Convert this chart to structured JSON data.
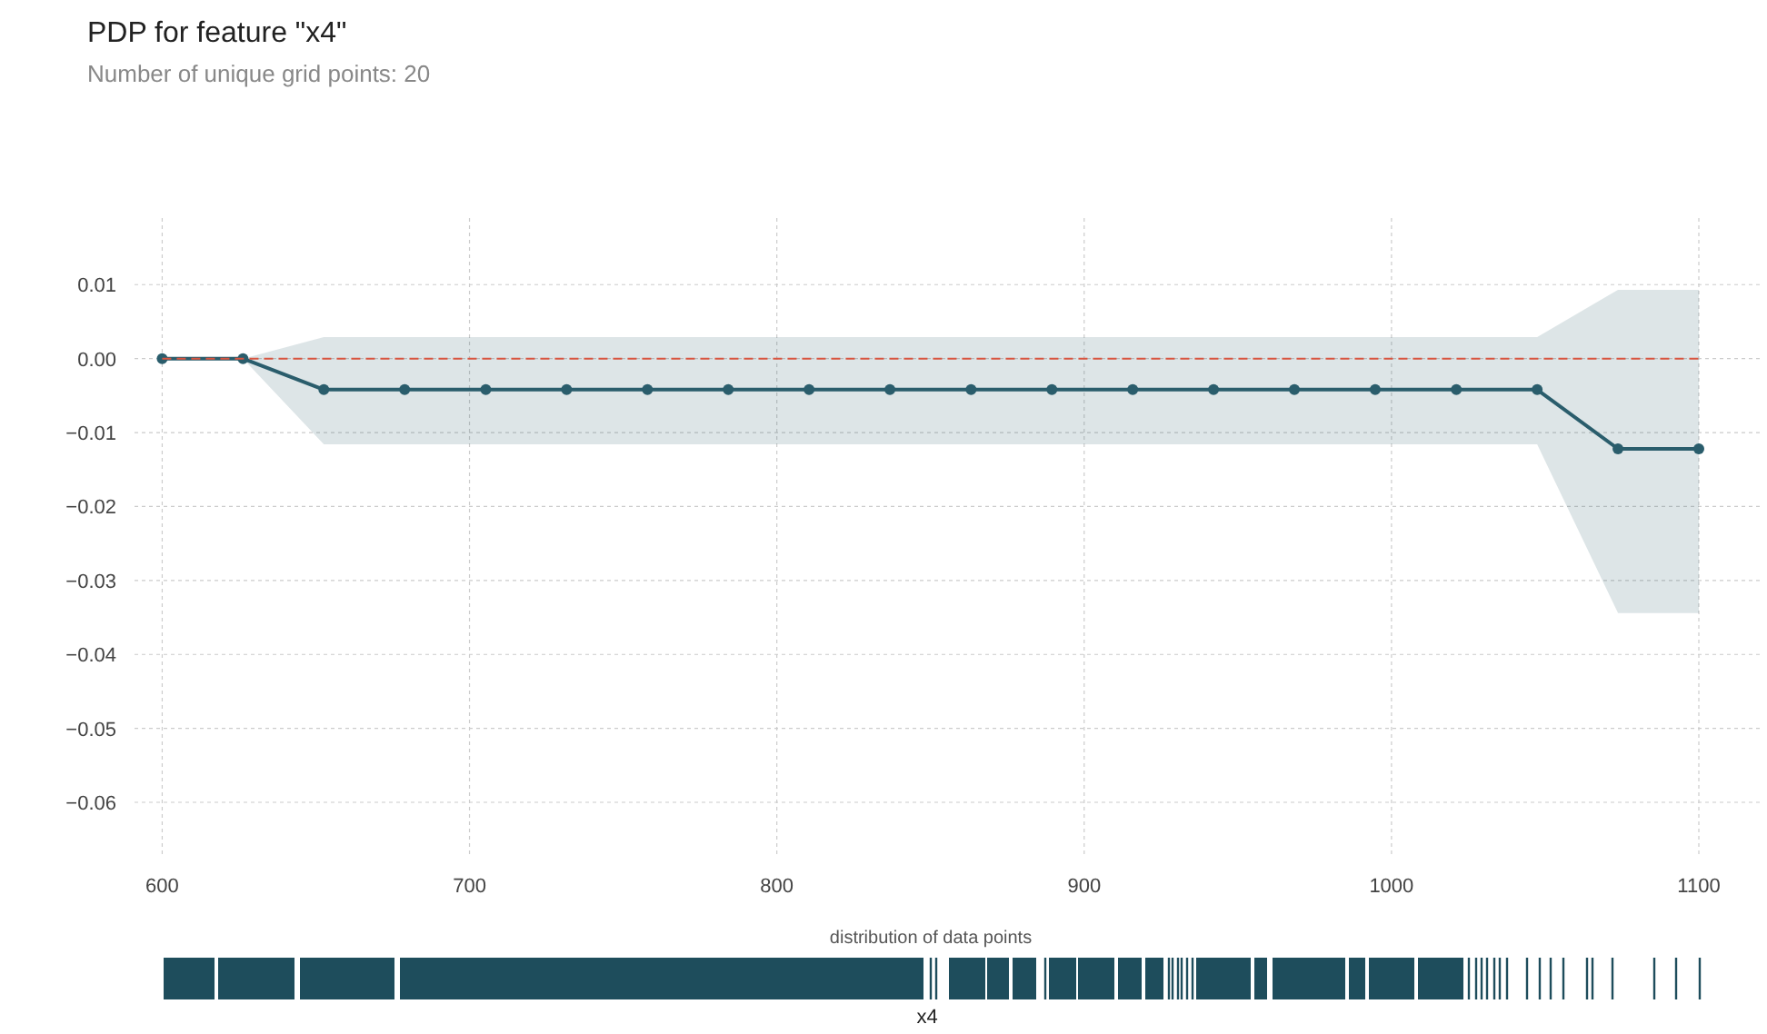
{
  "chart_data": [
    {
      "type": "line",
      "title": "PDP for feature \"x4\"",
      "subtitle": "Number of unique grid points: 20",
      "x": [
        600,
        626.3,
        652.6,
        678.9,
        705.3,
        731.6,
        757.9,
        784.2,
        810.5,
        836.8,
        863.2,
        889.5,
        915.8,
        942.1,
        968.4,
        994.7,
        1021.1,
        1047.4,
        1073.7,
        1100
      ],
      "series": [
        {
          "color": "#2a5d6c",
          "values": [
            0,
            0,
            -0.0042,
            -0.0042,
            -0.0042,
            -0.0042,
            -0.0042,
            -0.0042,
            -0.0042,
            -0.0042,
            -0.0042,
            -0.0042,
            -0.0042,
            -0.0042,
            -0.0042,
            -0.0042,
            -0.0042,
            -0.0042,
            -0.0122,
            -0.0122
          ],
          "lower": [
            0,
            0,
            -0.0116,
            -0.0116,
            -0.0116,
            -0.0116,
            -0.0116,
            -0.0116,
            -0.0116,
            -0.0116,
            -0.0116,
            -0.0116,
            -0.0116,
            -0.0116,
            -0.0116,
            -0.0116,
            -0.0116,
            -0.0116,
            -0.0344,
            -0.0344
          ],
          "upper": [
            0,
            0,
            0.0029,
            0.0029,
            0.0029,
            0.0029,
            0.0029,
            0.0029,
            0.0029,
            0.0029,
            0.0029,
            0.0029,
            0.0029,
            0.0029,
            0.0029,
            0.0029,
            0.0029,
            0.0029,
            0.0093,
            0.0093
          ]
        }
      ],
      "xlim": [
        591,
        1121
      ],
      "ylim": [
        -0.067,
        0.019
      ],
      "xticks": [
        600,
        700,
        800,
        900,
        1000,
        1100
      ],
      "yticks": [
        {
          "value": -0.06,
          "label": "−0.06"
        },
        {
          "value": -0.05,
          "label": "−0.05"
        },
        {
          "value": -0.04,
          "label": "−0.04"
        },
        {
          "value": -0.03,
          "label": "−0.03"
        },
        {
          "value": -0.02,
          "label": "−0.02"
        },
        {
          "value": -0.01,
          "label": "−0.01"
        },
        {
          "value": 0,
          "label": "0.00"
        },
        {
          "value": 0.01,
          "label": "0.01"
        }
      ],
      "ref_lines": [
        {
          "axis": "y",
          "value": 0,
          "color": "#d9543f",
          "line_style": "dashed"
        }
      ],
      "grid": true,
      "marker": "circle",
      "line_style": "solid"
    },
    {
      "type": "other",
      "title": "distribution of data points",
      "xlabel": "x4"
    }
  ]
}
